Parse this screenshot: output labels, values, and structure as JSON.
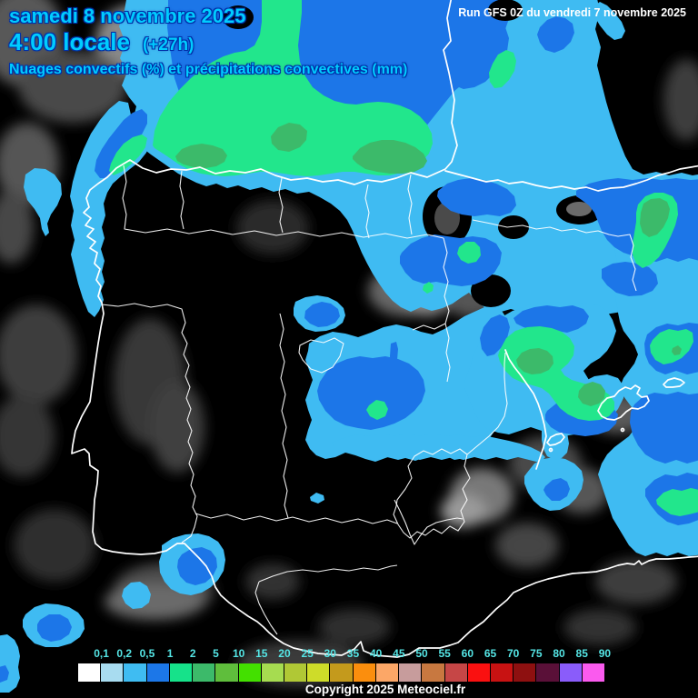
{
  "header": {
    "date": "samedi 8 novembre 2025",
    "time": "4:00 locale",
    "offset": "(+27h)",
    "subtitle": "Nuages convectifs (%) et précipitations convectives (mm)"
  },
  "run_info": "Run GFS 0Z du vendredi 7 novembre 2025",
  "copyright": "Copyright 2025 Meteociel.fr",
  "legend": {
    "labels": [
      "0,1",
      "0,2",
      "0,5",
      "1",
      "2",
      "5",
      "10",
      "15",
      "20",
      "25",
      "30",
      "35",
      "40",
      "45",
      "50",
      "55",
      "60",
      "65",
      "70",
      "75",
      "80",
      "85",
      "90"
    ],
    "colors": [
      "#ffffff",
      "#a8dcf0",
      "#3fbcf2",
      "#1c77e8",
      "#16e28a",
      "#3cba6a",
      "#5fbe3c",
      "#43e000",
      "#a6dc50",
      "#b0c835",
      "#cedc29",
      "#c49a1c",
      "#fb8e0d",
      "#fca767",
      "#c79c9c",
      "#c87840",
      "#c64646",
      "#fa1010",
      "#c81212",
      "#8e1010",
      "#5a1038",
      "#8a5cfa",
      "#fa5aee"
    ]
  },
  "map": {
    "precip_shades": {
      "light_rain": "#3fbbf2",
      "moderate_rain": "#1c76e8",
      "heavy_rain": "#22e68c",
      "very_heavy_rain": "#3cba6a"
    }
  },
  "theme": {
    "lightblue": "#3fbbf2",
    "darkblue": "#1c76e8",
    "green": "#22e68c",
    "darkgreen": "#3cba6a",
    "cyantext": "#00ccff",
    "legendtext": "#55e6e6"
  }
}
